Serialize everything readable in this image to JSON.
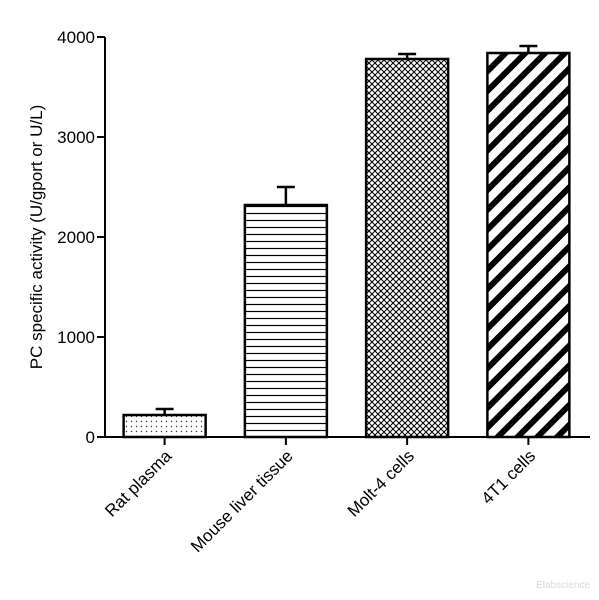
{
  "chart_data": {
    "type": "bar",
    "title": "",
    "xlabel": "",
    "ylabel": "PC specific activity (U/gport or U/L)",
    "ylim": [
      0,
      4000
    ],
    "yticks": [
      0,
      1000,
      2000,
      3000,
      4000
    ],
    "categories": [
      "Rat plasma",
      "Mouse liver tissue",
      "Molt-4 cells",
      "4T1 cells"
    ],
    "values": [
      220,
      2320,
      3780,
      3840
    ],
    "errors": [
      60,
      180,
      50,
      70
    ],
    "patterns": [
      "dots",
      "horizontal-lines",
      "crosshatch",
      "diagonal-lines"
    ],
    "grid": false,
    "colors": {
      "bar_stroke": "#000000",
      "background": "#ffffff"
    }
  },
  "watermark": "Elabscience"
}
